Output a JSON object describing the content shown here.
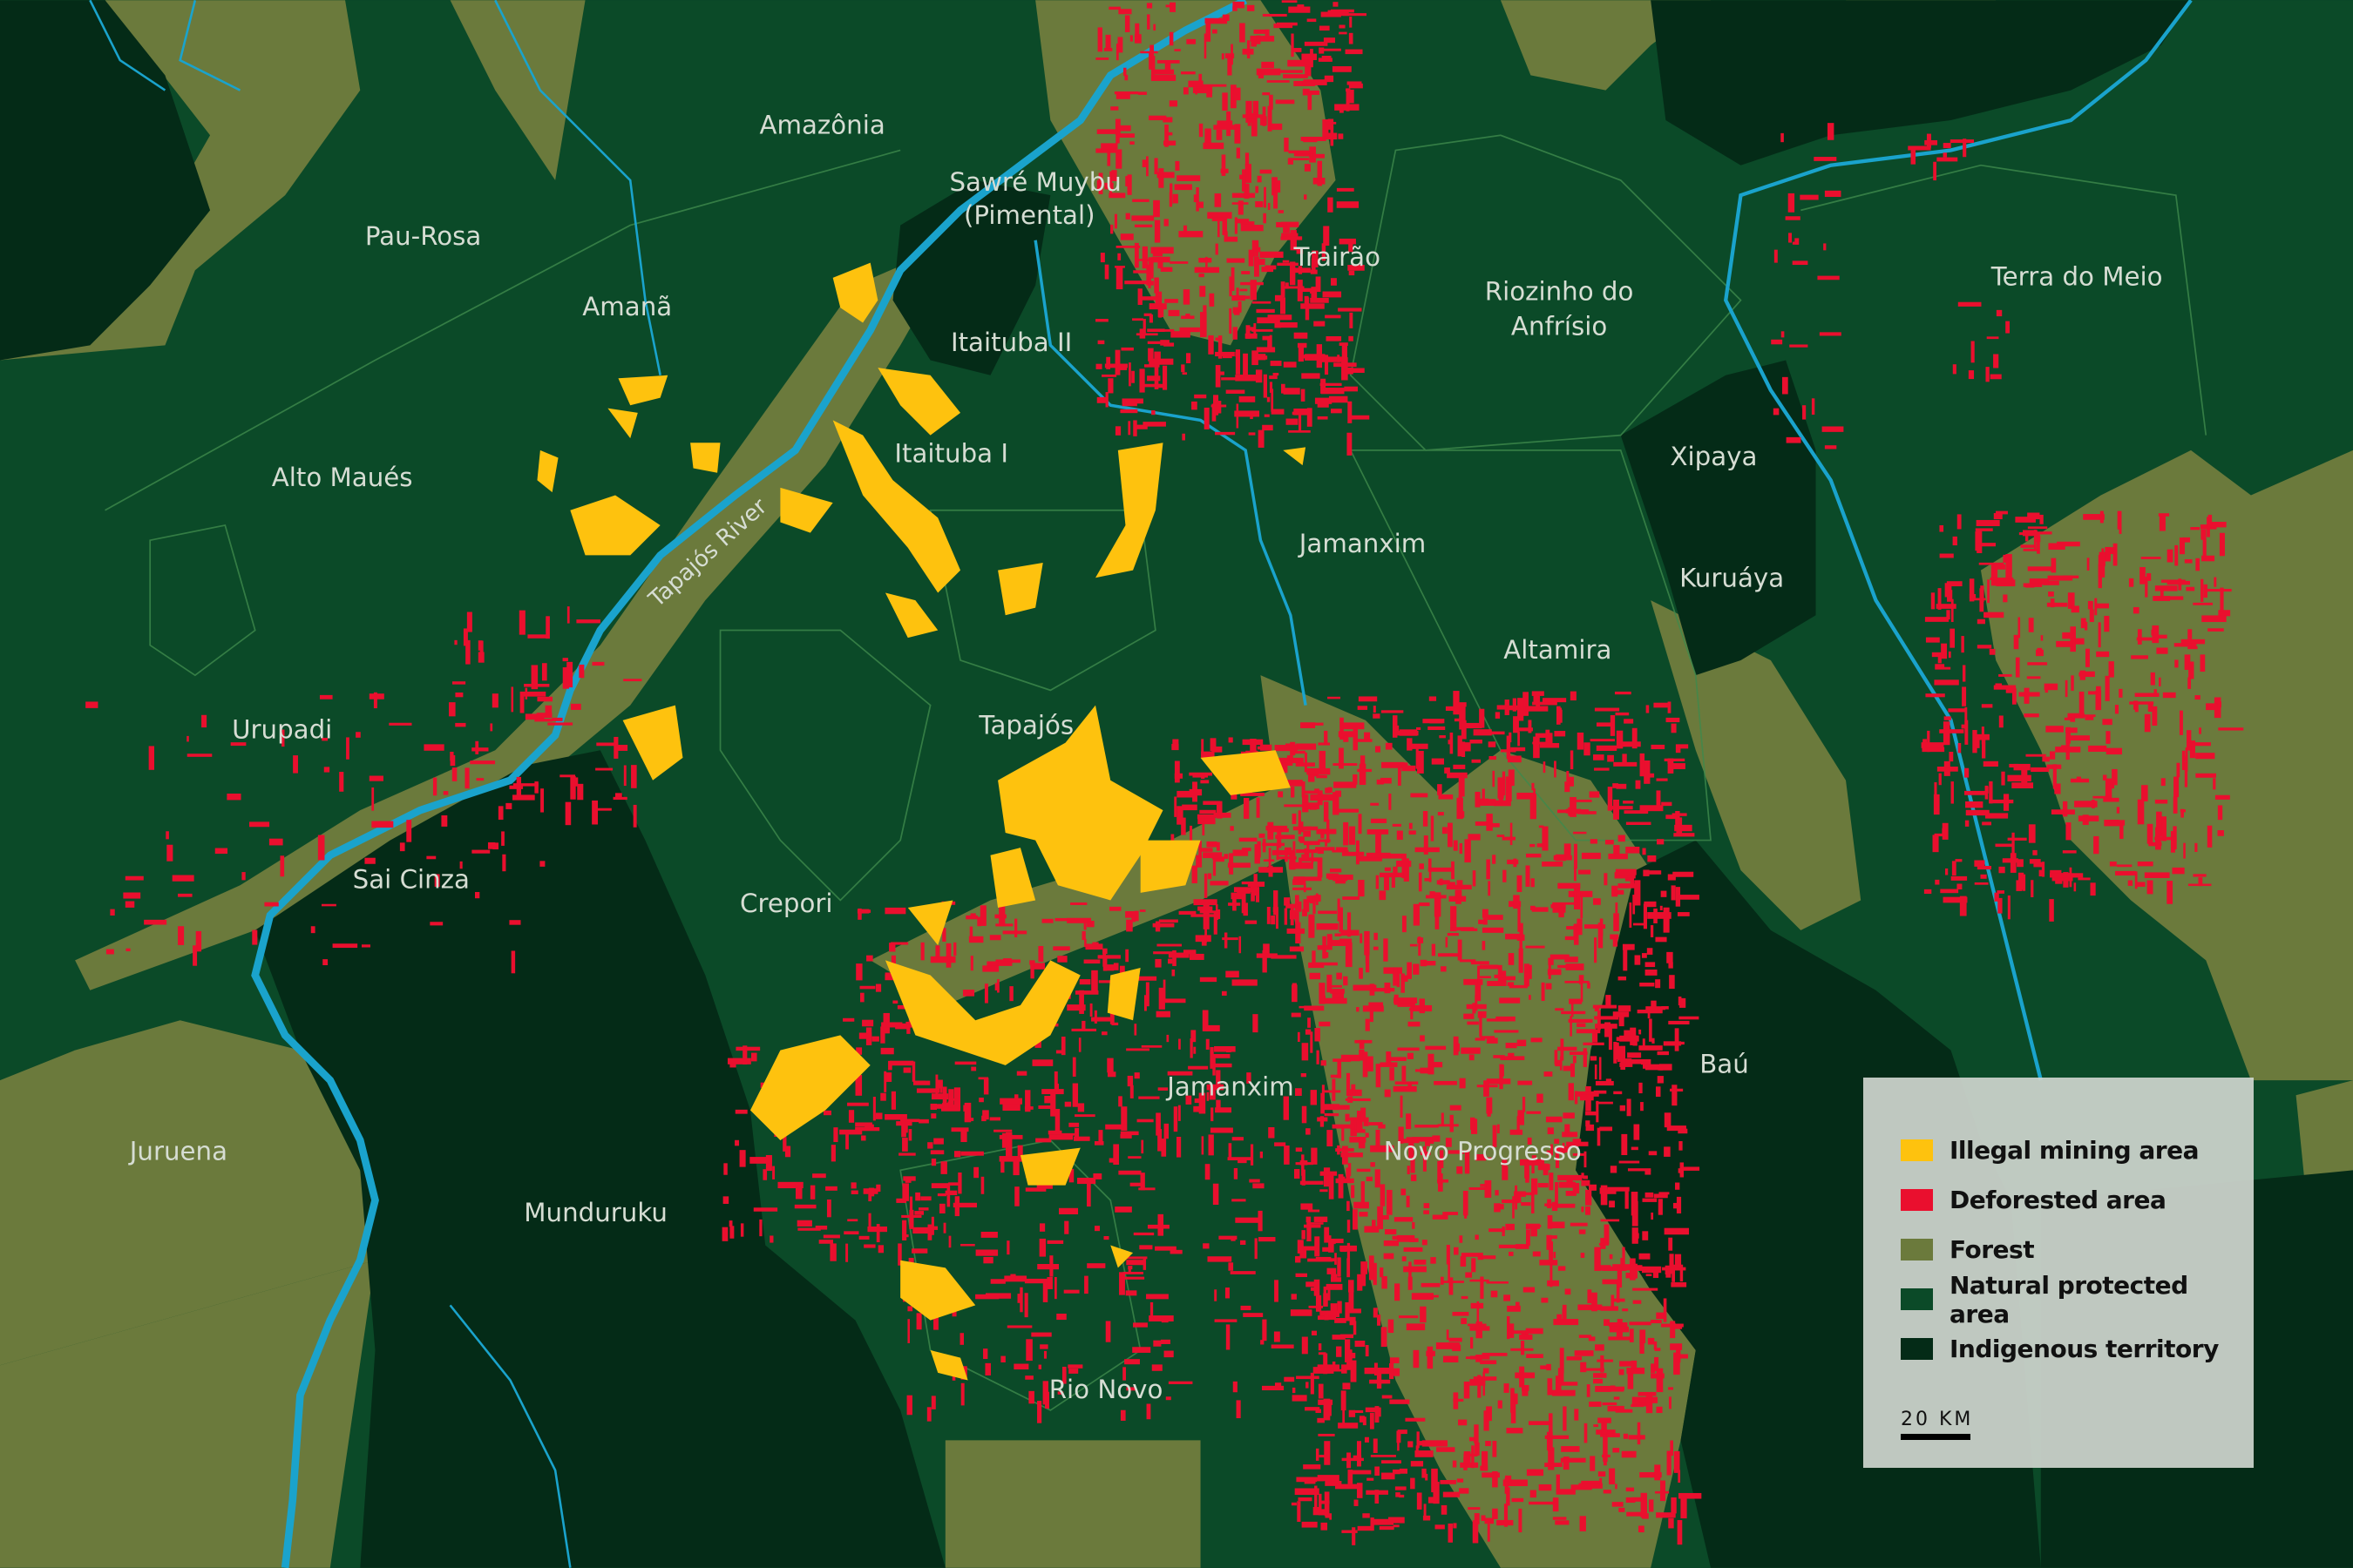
{
  "colors": {
    "mining": "#fec20e",
    "deforested": "#ea0f2e",
    "forest": "#6b7a3c",
    "protected": "#0b4a28",
    "indigenous": "#042b17",
    "river": "#1aa3cc"
  },
  "labels": {
    "amazonia": "Amazônia",
    "pau_rosa": "Pau-Rosa",
    "sawre_1": "Sawré Muybu",
    "sawre_2": "(Pimental)",
    "trairao": "Trairão",
    "riozinho_1": "Riozinho do",
    "riozinho_2": "Anfrísio",
    "terra_do_meio": "Terra do Meio",
    "amana": "Amanã",
    "itaituba_2": "Itaituba II",
    "itaituba_1": "Itaituba I",
    "xipaya": "Xipaya",
    "alto_maues": "Alto Maués",
    "jamanxim_north": "Jamanxim",
    "kuruaya": "Kuruáya",
    "altamira": "Altamira",
    "tapajos": "Tapajós",
    "urupadi": "Urupadi",
    "sai_cinza": "Sai Cinza",
    "crepori": "Crepori",
    "bau": "Baú",
    "jamanxim_south": "Jamanxim",
    "novo_progresso": "Novo Progresso",
    "juruena": "Juruena",
    "munduruku": "Munduruku",
    "rio_novo": "Rio Novo",
    "tapajos_river": "Tapajós River"
  },
  "legend": {
    "items": [
      {
        "label": "Illegal mining area",
        "color": "#fec20e"
      },
      {
        "label": "Deforested area",
        "color": "#ea0f2e"
      },
      {
        "label": "Forest",
        "color": "#6b7a3c"
      },
      {
        "label": "Natural protected area",
        "color": "#0b4a28"
      },
      {
        "label": "Indigenous territory",
        "color": "#042b17"
      }
    ],
    "scale_label": "20 KM"
  }
}
